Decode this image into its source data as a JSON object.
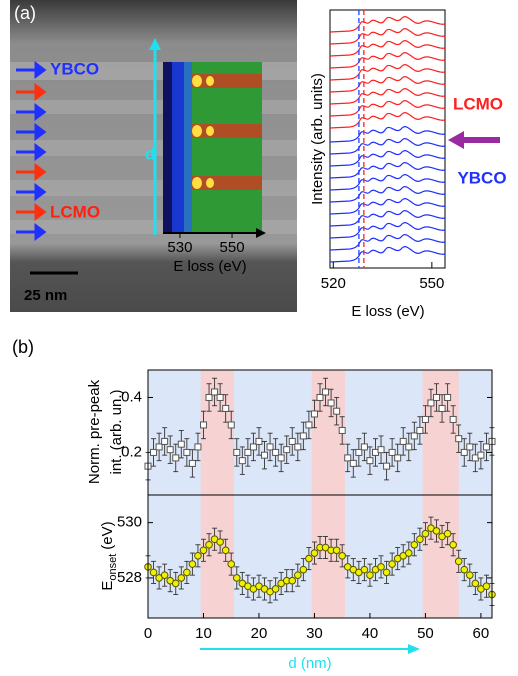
{
  "panel_labels": [
    "(a)",
    "(b)"
  ],
  "chart_data": [
    {
      "type": "spectrum-image",
      "xlabel": "E loss (eV)",
      "xlim": [
        523.5,
        561.5
      ],
      "xticks": [
        530,
        550
      ],
      "d_label": "d",
      "scale_bar": "25 nm",
      "layer_labels": [
        "YBCO",
        "LCMO"
      ]
    },
    {
      "type": "spectra",
      "xlabel": "E loss (eV)",
      "ylabel": "Intensity (arb. units)",
      "xlim": [
        519,
        554
      ],
      "xticks": [
        520,
        550
      ],
      "markers": [
        {
          "value": 527.8,
          "color": "#2040ff"
        },
        {
          "value": 529.3,
          "color": "#ff2020"
        }
      ],
      "labels": [
        "LCMO",
        "YBCO"
      ]
    },
    {
      "type": "scatter",
      "ylabel": [
        "Norm. pre-peak",
        "int. (arb. un.)"
      ],
      "xlim": [
        0,
        62
      ],
      "ylim": [
        0.045,
        0.5
      ],
      "yticks": [
        0.2,
        0.4
      ],
      "bands": [
        [
          9.5,
          15.5
        ],
        [
          29.5,
          35.5
        ],
        [
          49.5,
          56
        ]
      ],
      "x": [
        0,
        1,
        2,
        3,
        4,
        5,
        6,
        7,
        8,
        9,
        10,
        11,
        12,
        13,
        14,
        15,
        16,
        17,
        18,
        19,
        20,
        21,
        22,
        23,
        24,
        25,
        26,
        27,
        28,
        29,
        30,
        31,
        32,
        33,
        34,
        35,
        36,
        37,
        38,
        39,
        40,
        41,
        42,
        43,
        44,
        45,
        46,
        47,
        48,
        49,
        50,
        51,
        52,
        53,
        54,
        55,
        56,
        57,
        58,
        59,
        60,
        61,
        62
      ],
      "series": [
        {
          "marker": "square",
          "color": "#555555",
          "fill": "#ffffff",
          "error": 0.05,
          "values": [
            0.15,
            0.2,
            0.22,
            0.24,
            0.21,
            0.18,
            0.23,
            0.2,
            0.16,
            0.22,
            0.3,
            0.4,
            0.42,
            0.4,
            0.36,
            0.3,
            0.2,
            0.17,
            0.2,
            0.22,
            0.24,
            0.19,
            0.22,
            0.2,
            0.18,
            0.21,
            0.24,
            0.22,
            0.26,
            0.3,
            0.34,
            0.4,
            0.42,
            0.38,
            0.35,
            0.28,
            0.18,
            0.16,
            0.2,
            0.22,
            0.17,
            0.2,
            0.21,
            0.15,
            0.2,
            0.18,
            0.24,
            0.22,
            0.26,
            0.28,
            0.32,
            0.38,
            0.4,
            0.36,
            0.4,
            0.32,
            0.25,
            0.2,
            0.22,
            0.18,
            0.19,
            0.22,
            0.24
          ]
        }
      ]
    },
    {
      "type": "scatter",
      "ylabel": "E",
      "ylabel_sub": "onset",
      "ylabel_unit": "(eV)",
      "xlabel": "d (nm)",
      "xlim": [
        0,
        62
      ],
      "ylim": [
        526.55,
        531.0
      ],
      "yticks": [
        528,
        530
      ],
      "xticks": [
        0,
        10,
        20,
        30,
        40,
        50,
        60
      ],
      "bands": [
        [
          9.5,
          15.5
        ],
        [
          29.5,
          35.5
        ],
        [
          49.5,
          56
        ]
      ],
      "x": [
        0,
        1,
        2,
        3,
        4,
        5,
        6,
        7,
        8,
        9,
        10,
        11,
        12,
        13,
        14,
        15,
        16,
        17,
        18,
        19,
        20,
        21,
        22,
        23,
        24,
        25,
        26,
        27,
        28,
        29,
        30,
        31,
        32,
        33,
        34,
        35,
        36,
        37,
        38,
        39,
        40,
        41,
        42,
        43,
        44,
        45,
        46,
        47,
        48,
        49,
        50,
        51,
        52,
        53,
        54,
        55,
        56,
        57,
        58,
        59,
        60,
        61,
        62
      ],
      "series": [
        {
          "marker": "circle",
          "color": "#555500",
          "fill": "#f0f000",
          "error": 0.4,
          "values": [
            528.4,
            528.2,
            528.0,
            528.1,
            527.9,
            527.8,
            528.0,
            528.2,
            528.5,
            528.8,
            529.0,
            529.2,
            529.4,
            529.3,
            529.0,
            528.5,
            528.0,
            527.8,
            527.7,
            527.6,
            527.7,
            527.6,
            527.5,
            527.6,
            527.8,
            527.9,
            527.9,
            528.1,
            528.3,
            528.7,
            528.9,
            529.1,
            529.1,
            529.0,
            529.0,
            528.8,
            528.4,
            528.3,
            528.2,
            528.3,
            528.1,
            528.3,
            528.4,
            528.2,
            528.5,
            528.7,
            528.8,
            528.9,
            529.2,
            529.4,
            529.6,
            529.8,
            529.7,
            529.5,
            529.6,
            529.2,
            528.6,
            528.3,
            528.1,
            527.8,
            527.6,
            527.7,
            527.4
          ]
        }
      ]
    }
  ]
}
